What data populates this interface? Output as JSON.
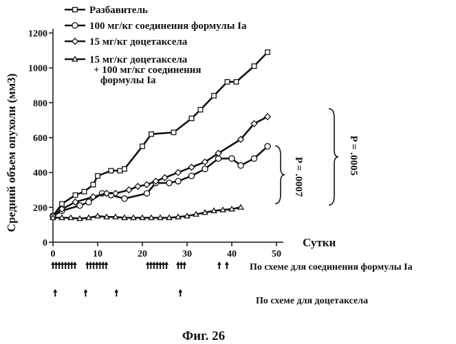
{
  "chart_data": {
    "type": "line",
    "xlabel": "Сутки",
    "ylabel": "Средний объем опухоли (мм3)",
    "xlim": [
      0,
      50
    ],
    "ylim": [
      0,
      1200
    ],
    "x_ticks": [
      0,
      10,
      20,
      30,
      40,
      50
    ],
    "y_ticks": [
      0,
      200,
      400,
      600,
      800,
      1000,
      1200
    ],
    "grid": false,
    "legend_position": "top-left",
    "series": [
      {
        "name": "Разбавитель",
        "marker": "square",
        "x": [
          0,
          2,
          5,
          7,
          9,
          10,
          13,
          15,
          16,
          20,
          22,
          27,
          31,
          33,
          36,
          39,
          41,
          45,
          48
        ],
        "y": [
          150,
          220,
          270,
          290,
          330,
          380,
          410,
          410,
          420,
          550,
          620,
          630,
          710,
          760,
          840,
          920,
          920,
          1010,
          1090
        ]
      },
      {
        "name": "100 мг/кг соединения формулы Ia",
        "marker": "circle",
        "x": [
          0,
          2,
          6,
          8,
          11,
          13,
          16,
          21,
          23,
          26,
          28,
          31,
          34,
          37,
          40,
          42,
          45,
          48
        ],
        "y": [
          150,
          180,
          210,
          230,
          280,
          270,
          250,
          280,
          340,
          340,
          350,
          380,
          420,
          480,
          480,
          440,
          480,
          550
        ]
      },
      {
        "name": "15 мг/кг доцетаксела",
        "marker": "diamond",
        "x": [
          0,
          2,
          5,
          9,
          12,
          14,
          17,
          19,
          21,
          23,
          25,
          28,
          31,
          34,
          37,
          42,
          45,
          48
        ],
        "y": [
          150,
          190,
          230,
          260,
          280,
          280,
          300,
          320,
          330,
          350,
          370,
          400,
          430,
          460,
          510,
          590,
          680,
          720
        ]
      },
      {
        "name": "15 мг/кг доцетаксела + 100 мг/кг соединения формулы Ia",
        "marker": "triangle",
        "x": [
          0,
          2,
          4,
          6,
          8,
          10,
          12,
          14,
          16,
          18,
          20,
          22,
          24,
          26,
          28,
          30,
          32,
          34,
          36,
          38,
          40,
          42
        ],
        "y": [
          140,
          140,
          140,
          135,
          140,
          150,
          145,
          145,
          140,
          140,
          140,
          140,
          140,
          140,
          145,
          150,
          160,
          170,
          180,
          185,
          190,
          200
        ]
      }
    ],
    "legend_labels": [
      [
        "Разбавитель"
      ],
      [
        "100 мг/кг соединения формулы Ia"
      ],
      [
        "15 мг/кг доцетаксела"
      ],
      [
        "15 мг/кг доцетаксела",
        "+ 100 мг/кг соединения",
        "формулы Ia"
      ]
    ],
    "annotations": {
      "p_value_1": "P = .0007",
      "p_value_2": "P = .0005"
    },
    "dosing_schedules": [
      {
        "label": "По схеме для соединения формулы Ia",
        "days": [
          0,
          0.7,
          1.4,
          2.1,
          2.8,
          3.5,
          4.2,
          4.9,
          7.7,
          8.4,
          9.1,
          9.8,
          10.5,
          11.2,
          11.9,
          21.2,
          21.9,
          22.6,
          23.3,
          24,
          24.7,
          25.4,
          28,
          28.7,
          29.4,
          37.2,
          38.9
        ]
      },
      {
        "label": "По схеме для доцетаксела",
        "days": [
          0.5,
          7.3,
          14.2,
          28.5
        ]
      }
    ],
    "figure_caption": "Фиг. 26"
  }
}
